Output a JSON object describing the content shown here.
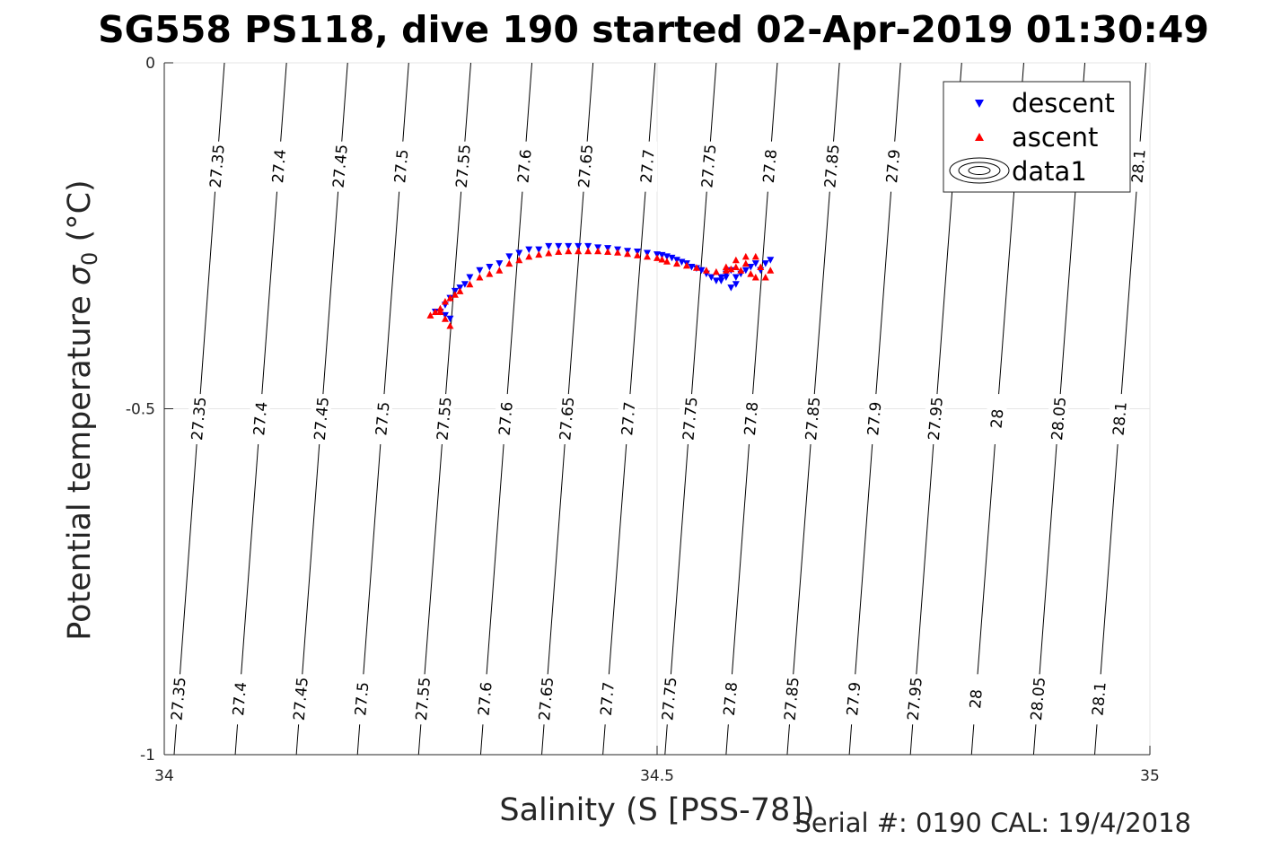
{
  "colors": {
    "descent": "#0000ff",
    "ascent": "#ff0000",
    "grid": "#e6e6e6",
    "axis": "#262626"
  },
  "chart_data": {
    "type": "scatter",
    "title": "SG558 PS118, dive 190 started 02-Apr-2019 01:30:49",
    "xlabel": "Salinity (S [PSS-78])",
    "ylabel": "Potential temperature σ0 (°C)",
    "ylabel_main": "Potential temperature ",
    "ylabel_sigma": "σ",
    "ylabel_sub": "0",
    "ylabel_unit": " (°C)",
    "xlim": [
      34,
      35
    ],
    "ylim": [
      -1,
      0
    ],
    "xticks": [
      "34",
      "34.5",
      "35"
    ],
    "yticks": [
      "0",
      "-0.5",
      "-1"
    ],
    "grid": true,
    "legend_position": "top-right",
    "legend": [
      "descent",
      "ascent",
      "data1"
    ],
    "footer": "Serial #: 0190  CAL: 19/4/2018",
    "isopycnals": {
      "columns": [
        {
          "y": -0.15,
          "labels": [
            "27.35",
            "27.4",
            "27.45",
            "27.5",
            "27.55",
            "27.6",
            "27.65",
            "27.7",
            "27.75",
            "27.8",
            "27.85",
            "27.9",
            "28.1"
          ]
        },
        {
          "y": -0.515,
          "labels": [
            "27.35",
            "27.4",
            "27.45",
            "27.5",
            "27.55",
            "27.6",
            "27.65",
            "27.7",
            "27.75",
            "27.8",
            "27.85",
            "27.9",
            "27.95",
            "28",
            "28.05",
            "28.1"
          ]
        },
        {
          "y": -0.92,
          "labels": [
            "27.35",
            "27.4",
            "27.45",
            "27.5",
            "27.55",
            "27.6",
            "27.65",
            "27.7",
            "27.75",
            "27.8",
            "27.85",
            "27.9",
            "27.95",
            "28",
            "28.05",
            "28.1"
          ]
        }
      ],
      "sigma_values": [
        27.35,
        27.4,
        27.45,
        27.5,
        27.55,
        27.6,
        27.65,
        27.7,
        27.75,
        27.8,
        27.85,
        27.9,
        27.95,
        28,
        28.05,
        28.1
      ],
      "salinity_at_top": [
        34.061,
        34.124,
        34.186,
        34.248,
        34.311,
        34.373,
        34.435,
        34.498,
        34.56,
        34.622,
        34.685,
        34.747,
        34.809,
        34.872,
        34.934,
        34.996
      ],
      "salinity_at_bottom": [
        34.01,
        34.072,
        34.134,
        34.196,
        34.258,
        34.321,
        34.383,
        34.445,
        34.508,
        34.57,
        34.632,
        34.695,
        34.757,
        34.819,
        34.882,
        34.944
      ]
    },
    "series": [
      {
        "name": "descent",
        "marker": "triangle-down",
        "color": "#0000ff",
        "x": [
          34.275,
          34.28,
          34.285,
          34.29,
          34.295,
          34.3,
          34.305,
          34.31,
          34.32,
          34.33,
          34.34,
          34.35,
          34.36,
          34.37,
          34.38,
          34.39,
          34.4,
          34.41,
          34.42,
          34.43,
          34.44,
          34.45,
          34.46,
          34.47,
          34.48,
          34.49,
          34.5,
          34.505,
          34.51,
          34.515,
          34.52,
          34.525,
          34.53,
          34.535,
          34.54,
          34.545,
          34.55,
          34.555,
          34.56,
          34.565,
          34.57,
          34.575,
          34.58,
          34.585,
          34.59,
          34.595,
          34.6,
          34.605,
          34.61,
          34.615,
          34.58,
          34.575,
          34.57,
          34.565,
          34.285,
          34.29
        ],
        "y": [
          -0.36,
          -0.36,
          -0.35,
          -0.34,
          -0.33,
          -0.325,
          -0.32,
          -0.31,
          -0.3,
          -0.295,
          -0.29,
          -0.28,
          -0.275,
          -0.27,
          -0.27,
          -0.265,
          -0.265,
          -0.265,
          -0.265,
          -0.265,
          -0.267,
          -0.268,
          -0.27,
          -0.272,
          -0.273,
          -0.275,
          -0.277,
          -0.278,
          -0.28,
          -0.282,
          -0.285,
          -0.288,
          -0.29,
          -0.295,
          -0.297,
          -0.3,
          -0.305,
          -0.31,
          -0.315,
          -0.31,
          -0.305,
          -0.3,
          -0.31,
          -0.305,
          -0.3,
          -0.295,
          -0.29,
          -0.3,
          -0.29,
          -0.285,
          -0.32,
          -0.325,
          -0.31,
          -0.315,
          -0.365,
          -0.37
        ]
      },
      {
        "name": "ascent",
        "marker": "triangle-up",
        "color": "#ff0000",
        "x": [
          34.27,
          34.275,
          34.28,
          34.285,
          34.29,
          34.295,
          34.3,
          34.31,
          34.32,
          34.33,
          34.34,
          34.35,
          34.36,
          34.37,
          34.38,
          34.39,
          34.4,
          34.41,
          34.42,
          34.43,
          34.44,
          34.45,
          34.46,
          34.47,
          34.48,
          34.49,
          34.5,
          34.505,
          34.51,
          34.52,
          34.53,
          34.54,
          34.55,
          34.56,
          34.57,
          34.575,
          34.58,
          34.585,
          34.59,
          34.595,
          34.6,
          34.605,
          34.61,
          34.615,
          34.57,
          34.58,
          34.59,
          34.6,
          34.285,
          34.29,
          34.28
        ],
        "y": [
          -0.365,
          -0.36,
          -0.355,
          -0.345,
          -0.34,
          -0.335,
          -0.33,
          -0.32,
          -0.31,
          -0.305,
          -0.3,
          -0.29,
          -0.285,
          -0.28,
          -0.277,
          -0.275,
          -0.273,
          -0.272,
          -0.272,
          -0.272,
          -0.272,
          -0.273,
          -0.274,
          -0.276,
          -0.278,
          -0.28,
          -0.282,
          -0.284,
          -0.287,
          -0.29,
          -0.293,
          -0.296,
          -0.3,
          -0.302,
          -0.3,
          -0.298,
          -0.295,
          -0.3,
          -0.29,
          -0.305,
          -0.28,
          -0.295,
          -0.31,
          -0.3,
          -0.295,
          -0.285,
          -0.28,
          -0.31,
          -0.37,
          -0.38,
          -0.36
        ]
      }
    ]
  }
}
